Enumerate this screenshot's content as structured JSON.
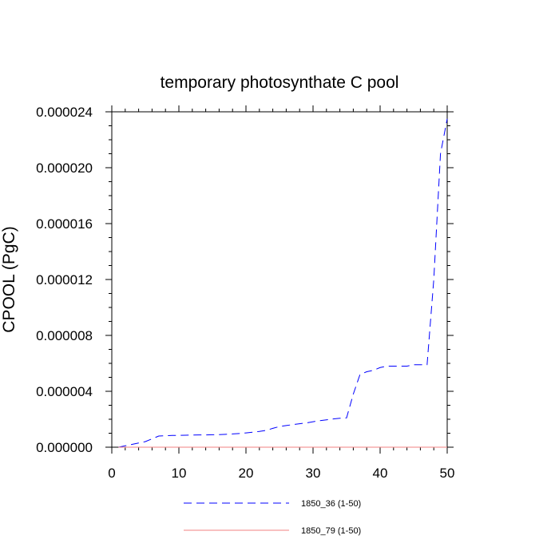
{
  "chart_data": {
    "type": "line",
    "title": "temporary photosynthate C pool",
    "xlabel": "",
    "ylabel": "CPOOL (PgC)",
    "xlim": [
      0,
      50
    ],
    "ylim": [
      0,
      2.4e-05
    ],
    "x_ticks": [
      0,
      10,
      20,
      30,
      40,
      50
    ],
    "x_tick_labels": [
      "0",
      "10",
      "20",
      "30",
      "40",
      "50"
    ],
    "y_ticks": [
      0,
      4e-06,
      8e-06,
      1.2e-05,
      1.6e-05,
      2e-05,
      2.4e-05
    ],
    "y_tick_labels": [
      "0.000000",
      "0.000004",
      "0.000008",
      "0.000012",
      "0.000016",
      "0.000020",
      "0.000024"
    ],
    "grid": false,
    "legend_position": "bottom",
    "series": [
      {
        "name": "1850_36 (1-50)",
        "color": "#0000ff",
        "dash": "dashed",
        "x": [
          1,
          2,
          3,
          4,
          5,
          6,
          7,
          8,
          9,
          10,
          11,
          12,
          13,
          14,
          15,
          16,
          17,
          18,
          19,
          20,
          21,
          22,
          23,
          24,
          25,
          26,
          27,
          28,
          29,
          30,
          31,
          32,
          33,
          34,
          35,
          36,
          37,
          38,
          39,
          40,
          41,
          42,
          43,
          44,
          45,
          46,
          47,
          48,
          49,
          50
        ],
        "values": [
          0.0,
          1e-07,
          2e-07,
          3e-07,
          4e-07,
          6e-07,
          8e-07,
          8.2e-07,
          8.4e-07,
          8.5e-07,
          8.6e-07,
          8.7e-07,
          8.8e-07,
          8.8e-07,
          8.9e-07,
          9e-07,
          9.2e-07,
          9.5e-07,
          9.8e-07,
          1.02e-06,
          1.07e-06,
          1.13e-06,
          1.2e-06,
          1.35e-06,
          1.48e-06,
          1.55e-06,
          1.62e-06,
          1.68e-06,
          1.74e-06,
          1.82e-06,
          1.9e-06,
          1.96e-06,
          2.02e-06,
          2.07e-06,
          2.1e-06,
          3.8e-06,
          5.2e-06,
          5.4e-06,
          5.5e-06,
          5.7e-06,
          5.8e-06,
          5.8e-06,
          5.8e-06,
          5.8e-06,
          5.9e-06,
          5.9e-06,
          5.9e-06,
          1.2e-05,
          2.1e-05,
          2.35e-05
        ]
      },
      {
        "name": "1850_79 (1-50)",
        "color": "#f08080",
        "dash": "solid",
        "x": [
          1,
          50
        ],
        "values": [
          0,
          0
        ]
      }
    ]
  }
}
